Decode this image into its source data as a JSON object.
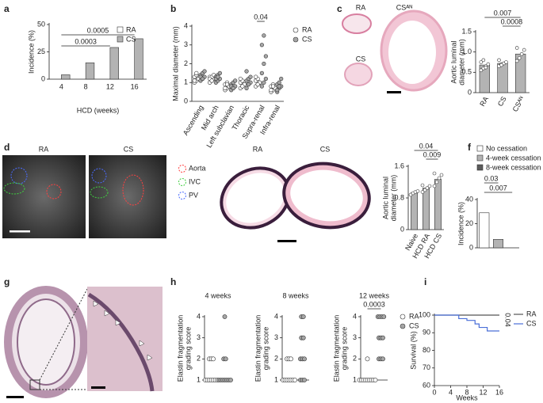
{
  "chart_data": [
    {
      "panel": "a",
      "type": "bar",
      "x_label": "HCD (weeks)",
      "y_label": "Incidence (%)",
      "categories": [
        "4",
        "8",
        "12",
        "16"
      ],
      "series": [
        {
          "name": "RA",
          "color": "#ffffff",
          "values": [
            0,
            0,
            0,
            0
          ]
        },
        {
          "name": "CS",
          "color": "#b3b3b3",
          "values": [
            4,
            15,
            29,
            37
          ]
        }
      ],
      "ylim": [
        0,
        50
      ],
      "yticks": [
        0,
        25,
        50
      ],
      "annotations": [
        "0.0005",
        "0.0003"
      ],
      "legend": true
    },
    {
      "panel": "b",
      "type": "dot",
      "y_label": "Maximal diameter (mm)",
      "categories": [
        "Ascending",
        "Mid arch",
        "Left subclavian",
        "Thoracic",
        "Supra-renal",
        "Infra-renal"
      ],
      "series": [
        {
          "name": "RA",
          "color": "#ffffff",
          "values": [
            [
              1.0,
              1.1,
              1.2,
              1.3,
              1.4,
              1.2,
              1.1,
              1.5
            ],
            [
              1.0,
              1.1,
              1.2,
              1.3,
              1.3,
              1.4,
              1.2,
              1.1
            ],
            [
              0.6,
              0.7,
              0.8,
              0.9,
              1.0,
              0.8,
              0.7,
              0.9
            ],
            [
              0.7,
              0.8,
              0.9,
              1.0,
              1.1,
              0.9,
              1.2,
              0.8
            ],
            [
              0.8,
              0.9,
              1.0,
              1.1,
              1.2,
              1.0,
              1.3,
              0.9
            ],
            [
              0.5,
              0.6,
              0.7,
              0.8,
              0.9,
              0.7,
              0.6,
              0.8
            ]
          ]
        },
        {
          "name": "CS",
          "color": "#a6a6a6",
          "values": [
            [
              1.1,
              1.2,
              1.3,
              1.4,
              1.5,
              1.6,
              1.3,
              1.2
            ],
            [
              1.0,
              1.1,
              1.2,
              1.3,
              1.4,
              1.5,
              1.2,
              1.3
            ],
            [
              0.6,
              0.7,
              0.8,
              0.9,
              1.0,
              1.1,
              0.8,
              0.7
            ],
            [
              0.7,
              0.9,
              1.0,
              1.1,
              1.2,
              1.3,
              1.6,
              0.9
            ],
            [
              0.8,
              1.0,
              1.2,
              1.5,
              2.0,
              2.4,
              3.0,
              3.5
            ],
            [
              0.5,
              0.7,
              0.8,
              0.9,
              1.0,
              1.2,
              0.6,
              0.8
            ]
          ]
        }
      ],
      "ylim": [
        0,
        4
      ],
      "yticks": [
        0,
        1,
        2,
        3,
        4
      ],
      "annotations": [
        "0.04"
      ],
      "legend": true
    },
    {
      "panel": "c",
      "type": "bar",
      "y_label": [
        "Aortic luminal",
        "diameter (mm)"
      ],
      "categories": [
        "RA",
        "CS",
        "CSᴬᴺ"
      ],
      "values": [
        0.68,
        0.72,
        0.95
      ],
      "color": "#b3b3b3",
      "points": [
        [
          0.55,
          0.6,
          0.65,
          0.7,
          0.75,
          0.8,
          0.62
        ],
        [
          0.65,
          0.7,
          0.72,
          0.75,
          0.8,
          0.68
        ],
        [
          0.78,
          0.85,
          0.95,
          1.05,
          1.1
        ]
      ],
      "ylim": [
        0,
        1.5
      ],
      "yticks": [
        0,
        0.5,
        {
          "value": 1,
          "label": "1.0"
        },
        1.5
      ],
      "annotations": [
        "0.007",
        "0.0008"
      ]
    },
    {
      "type": "bar",
      "y_label": [
        "Aortic luminal",
        "diameter (mm)"
      ],
      "categories": [
        "Naive",
        "HCD RA",
        "HCD CS"
      ],
      "values": [
        0.93,
        1.05,
        1.27
      ],
      "color": "#b3b3b3",
      "points": [
        [
          0.88,
          0.92,
          0.95,
          0.97
        ],
        [
          0.95,
          1.0,
          1.05,
          1.1,
          1.12
        ],
        [
          1.1,
          1.2,
          1.3,
          1.38,
          1.42
        ]
      ],
      "ylim": [
        0,
        1.6
      ],
      "yticks": [
        0,
        0.8,
        1.6
      ],
      "annotations": [
        "0.04",
        "0.009"
      ]
    },
    {
      "panel": "f",
      "type": "bar",
      "y_label": "Incidence (%)",
      "series": [
        {
          "name": "No cessation",
          "color": "#ffffff",
          "values": [
            29
          ]
        },
        {
          "name": "4-week cessation",
          "color": "#b3b3b3",
          "values": [
            7
          ]
        },
        {
          "name": "8-week cessation",
          "color": "#5a5a5a",
          "values": [
            0
          ]
        }
      ],
      "ylim": [
        0,
        40
      ],
      "yticks": [
        0,
        20,
        40
      ],
      "annotations": [
        "0.03",
        "0.007"
      ],
      "legend": true
    },
    {
      "panel": "h",
      "type": "strip",
      "title": "4 weeks",
      "y_label": [
        "Elastin fragmentation",
        "grading score"
      ],
      "series": [
        {
          "name": "RA",
          "color": "#ffffff",
          "values": [
            1,
            1,
            1,
            1,
            1,
            1,
            2,
            2,
            2,
            1
          ]
        },
        {
          "name": "CS",
          "color": "#a6a6a6",
          "values": [
            1,
            1,
            1,
            1,
            2,
            2,
            4,
            1,
            1,
            1
          ]
        }
      ],
      "ylim": [
        1,
        4
      ],
      "yticks": [
        1,
        2,
        3,
        4
      ]
    },
    {
      "type": "strip",
      "title": "8 weeks",
      "y_label": [
        "Elastin fragmentation",
        "grading score"
      ],
      "series": [
        {
          "name": "RA",
          "color": "#ffffff",
          "values": [
            1,
            1,
            1,
            1,
            2,
            2,
            1,
            1,
            2,
            1
          ]
        },
        {
          "name": "CS",
          "color": "#a6a6a6",
          "values": [
            1,
            1,
            2,
            2,
            3,
            3,
            4,
            4,
            1,
            2
          ]
        }
      ],
      "ylim": [
        1,
        4
      ],
      "yticks": [
        1,
        2,
        3,
        4
      ]
    },
    {
      "type": "strip",
      "title": "12 weeks",
      "y_label": [
        "Elastin fragmentation",
        "grading score"
      ],
      "series": [
        {
          "name": "RA",
          "color": "#ffffff",
          "values": [
            1,
            1,
            1,
            1,
            1,
            2,
            1,
            1,
            1,
            1
          ]
        },
        {
          "name": "CS",
          "color": "#a6a6a6",
          "values": [
            2,
            2,
            2,
            3,
            3,
            4,
            4,
            4,
            4,
            3
          ]
        }
      ],
      "ylim": [
        1,
        4
      ],
      "yticks": [
        1,
        2,
        3,
        4
      ],
      "annotations": [
        "0.0003"
      ],
      "legend": true
    },
    {
      "panel": "i",
      "type": "line",
      "x_label": "Weeks",
      "y_label": "Survival (%)",
      "series": [
        {
          "name": "RA",
          "color": "#555555",
          "x": [
            0,
            16
          ],
          "values": [
            100,
            100
          ]
        },
        {
          "name": "CS",
          "color": "#4a6fd8",
          "x": [
            0,
            6,
            6,
            8,
            8,
            10,
            10,
            11,
            11,
            13,
            13,
            16
          ],
          "values": [
            100,
            100,
            98,
            98,
            97,
            97,
            95,
            95,
            93,
            93,
            91,
            91
          ]
        }
      ],
      "xlim": [
        0,
        16
      ],
      "xticks": [
        0,
        4,
        8,
        12,
        16
      ],
      "ylim": [
        60,
        100
      ],
      "yticks": [
        60,
        70,
        80,
        90,
        100
      ],
      "annotations": [
        "0.04"
      ],
      "legend": true
    }
  ],
  "images": [
    {
      "labels": [
        "RA",
        "CSᴬᴺ",
        "CS"
      ]
    },
    {
      "panel": "d",
      "labels": [
        "RA",
        "CS"
      ],
      "legend": [
        "Aorta",
        "IVC",
        "PV"
      ]
    },
    {
      "labels": [
        "RA",
        "CS"
      ]
    },
    {
      "panel": "g"
    }
  ]
}
